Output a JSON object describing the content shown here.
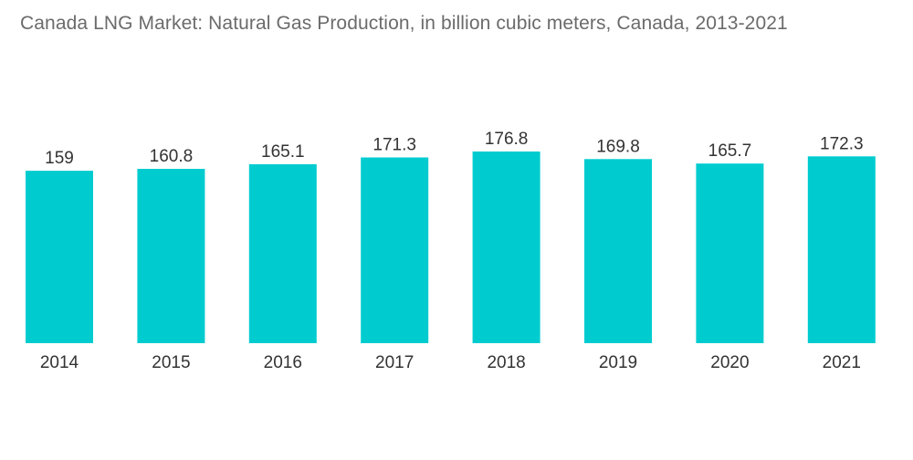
{
  "chart_data": {
    "type": "bar",
    "title": "Canada LNG Market: Natural Gas Production, in billion cubic meters, Canada, 2013-2021",
    "categories": [
      "2014",
      "2015",
      "2016",
      "2017",
      "2018",
      "2019",
      "2020",
      "2021"
    ],
    "values": [
      159,
      160.8,
      165.1,
      171.3,
      176.8,
      169.8,
      165.7,
      172.3
    ],
    "value_labels": [
      "159",
      "160.8",
      "165.1",
      "171.3",
      "176.8",
      "169.8",
      "165.7",
      "172.3"
    ],
    "xlabel": "",
    "ylabel": "",
    "ylim": [
      0,
      176.8
    ],
    "grid": false,
    "legend": "none",
    "bar_color": "#00ccd0"
  }
}
